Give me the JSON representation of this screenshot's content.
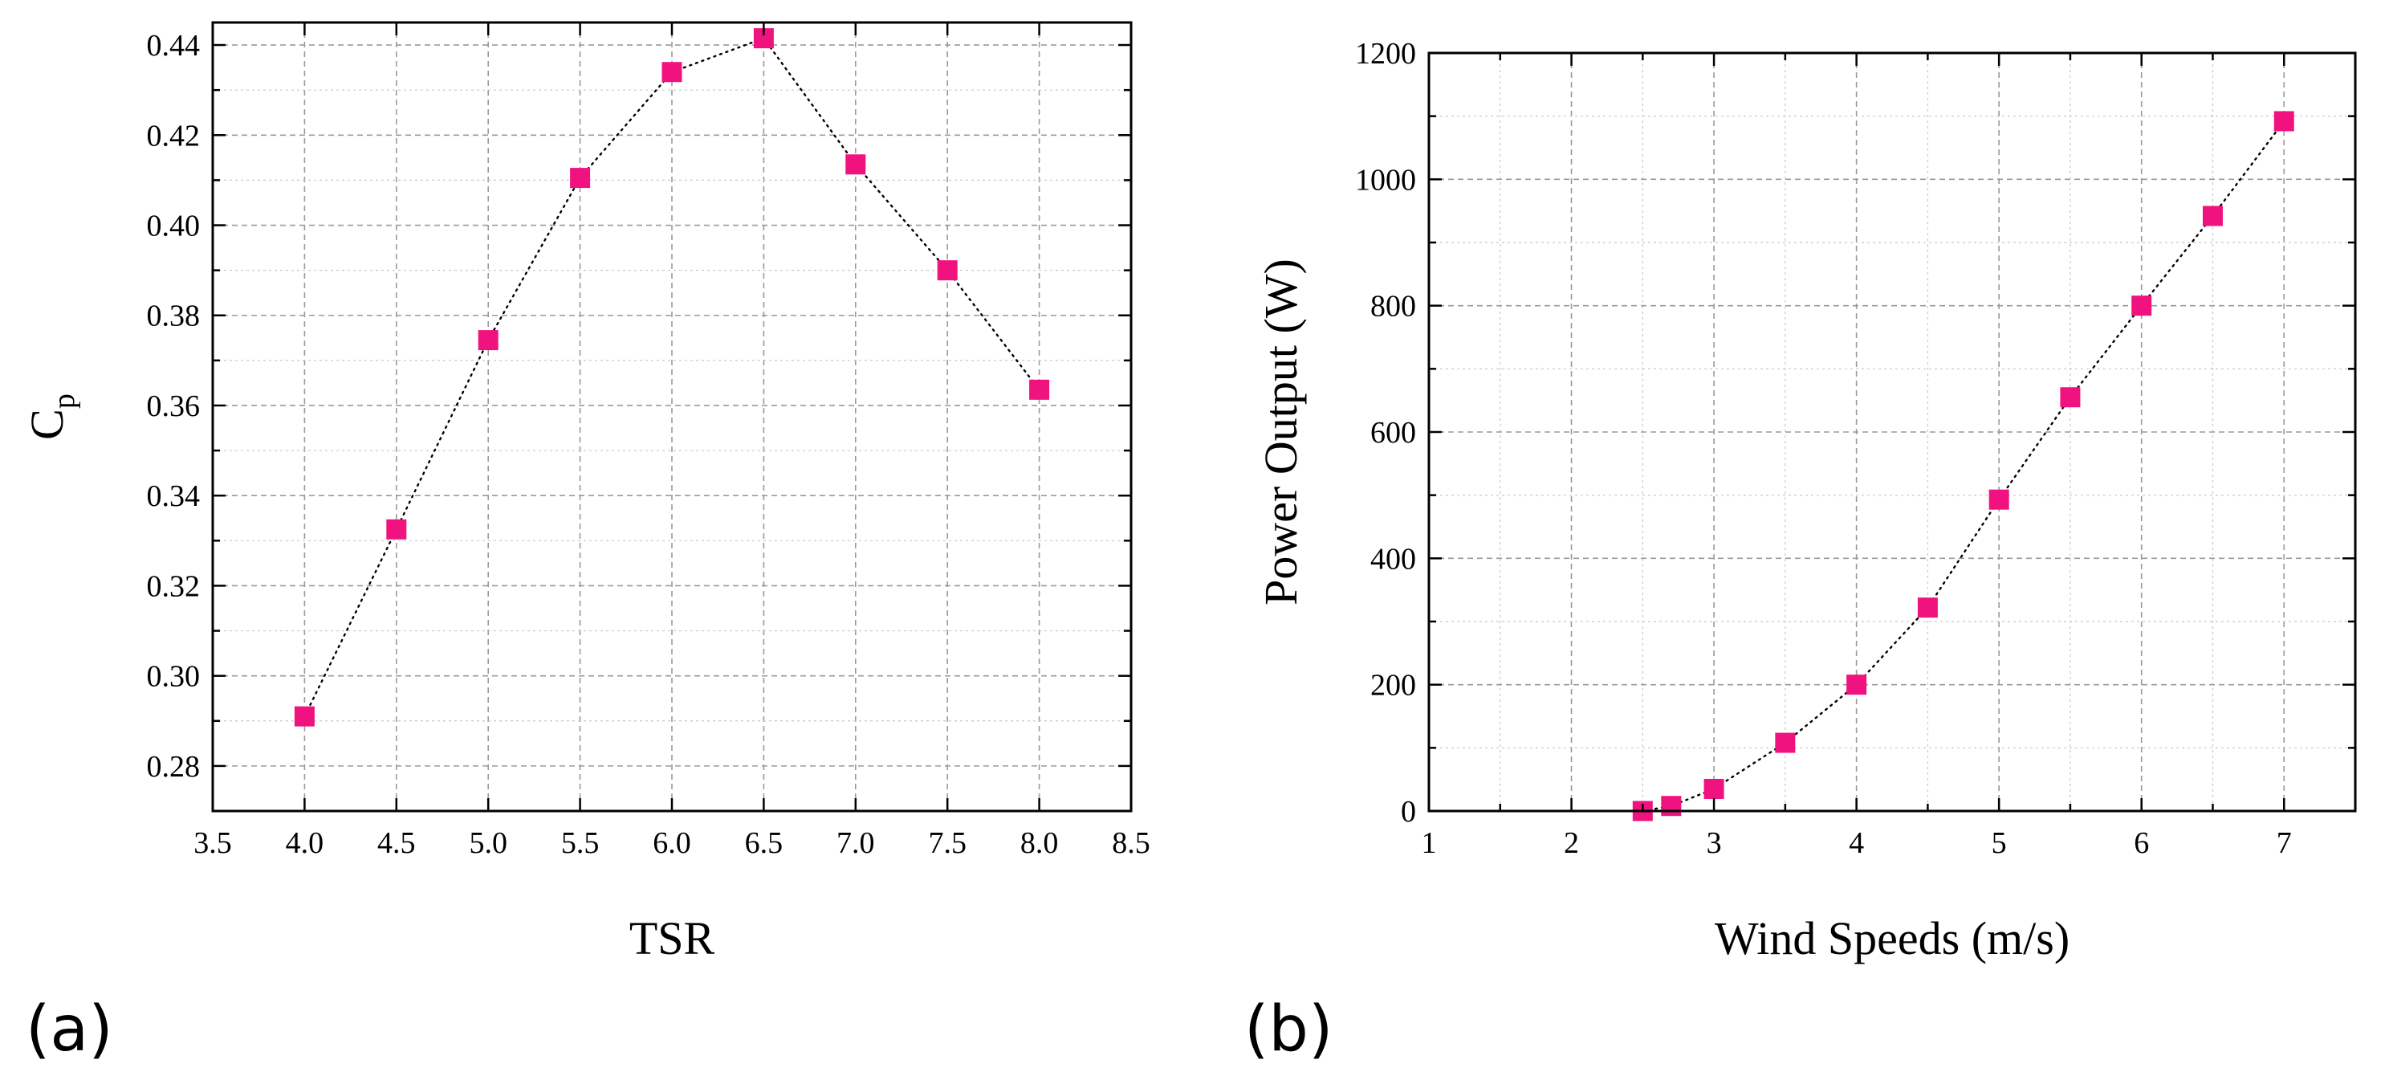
{
  "chart_data": [
    {
      "type": "scatter",
      "panel_label": "(a)",
      "title": "",
      "xlabel": "TSR",
      "ylabel_main": "C",
      "ylabel_sub": "p",
      "xlim": [
        3.5,
        8.5
      ],
      "ylim": [
        0.27,
        0.445
      ],
      "xticks": [
        3.5,
        4.0,
        4.5,
        5.0,
        5.5,
        6.0,
        6.5,
        7.0,
        7.5,
        8.0,
        8.5
      ],
      "xtick_labels": [
        "3.5",
        "4.0",
        "4.5",
        "5.0",
        "5.5",
        "6.0",
        "6.5",
        "7.0",
        "7.5",
        "8.0",
        "8.5"
      ],
      "yticks": [
        0.28,
        0.3,
        0.32,
        0.34,
        0.36,
        0.38,
        0.4,
        0.42,
        0.44
      ],
      "ytick_labels": [
        "0.28",
        "0.30",
        "0.32",
        "0.34",
        "0.36",
        "0.38",
        "0.40",
        "0.42",
        "0.44"
      ],
      "grid": true,
      "series": [
        {
          "name": "Cp",
          "x": [
            4.0,
            4.5,
            5.0,
            5.5,
            6.0,
            6.5,
            7.0,
            7.5,
            8.0
          ],
          "y": [
            0.291,
            0.3325,
            0.3745,
            0.4105,
            0.434,
            0.4415,
            0.4135,
            0.39,
            0.3635
          ],
          "color": "#f0137f",
          "marker": "square",
          "line_style": "dotted"
        }
      ]
    },
    {
      "type": "scatter",
      "panel_label": "(b)",
      "title": "",
      "xlabel": "Wind Speeds (m/s)",
      "ylabel_main": "Power Output (W)",
      "ylabel_sub": "",
      "xlim": [
        1,
        7.5
      ],
      "ylim": [
        0,
        1200
      ],
      "xticks": [
        1,
        2,
        3,
        4,
        5,
        6,
        7
      ],
      "xtick_labels": [
        "1",
        "2",
        "3",
        "4",
        "5",
        "6",
        "7"
      ],
      "yticks": [
        0,
        200,
        400,
        600,
        800,
        1000,
        1200
      ],
      "ytick_labels": [
        "0",
        "200",
        "400",
        "600",
        "800",
        "1000",
        "1200"
      ],
      "grid": true,
      "series": [
        {
          "name": "Power",
          "x": [
            2.5,
            2.7,
            3.0,
            3.5,
            4.0,
            4.5,
            5.0,
            5.5,
            6.0,
            6.5,
            7.0
          ],
          "y": [
            0,
            8,
            35,
            108,
            200,
            322,
            493,
            655,
            800,
            942,
            1092
          ],
          "color": "#f0137f",
          "marker": "square",
          "line_style": "dotted"
        }
      ]
    }
  ]
}
